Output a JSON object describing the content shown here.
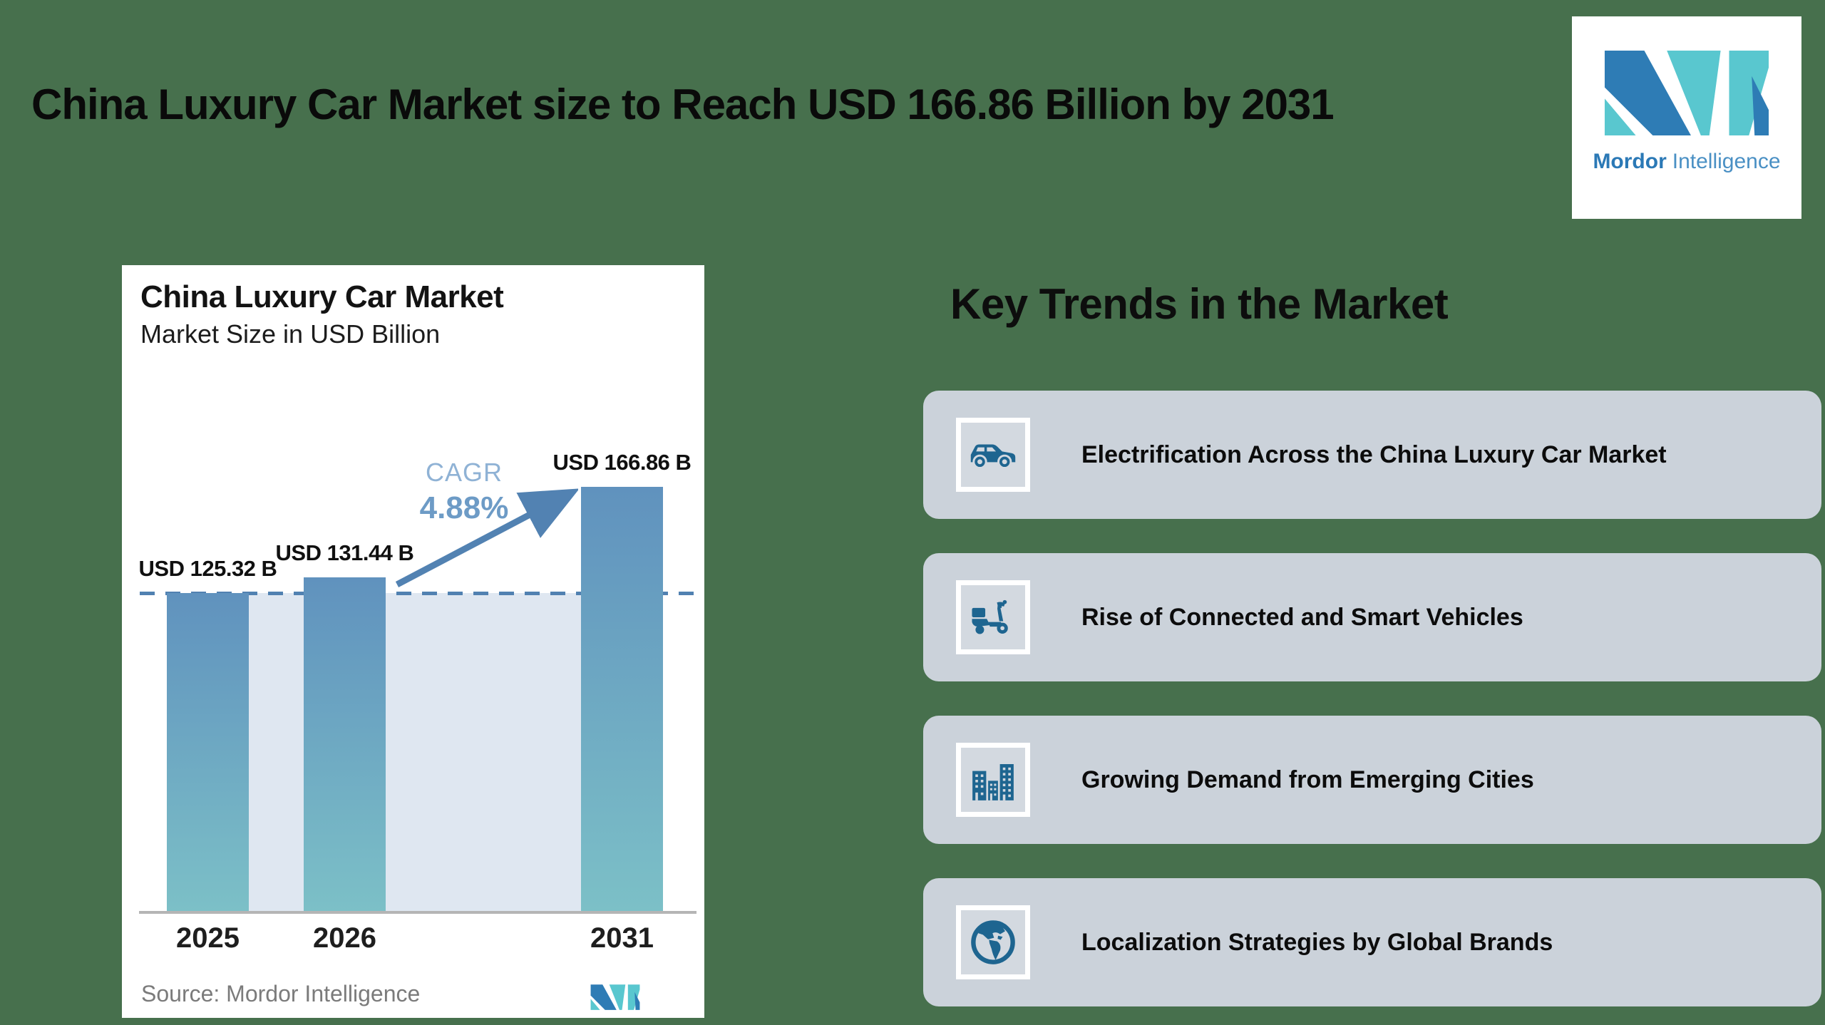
{
  "header": {
    "title": "China Luxury Car Market size to Reach USD 166.86 Billion by 2031"
  },
  "logo": {
    "brand_bold": "Mordor",
    "brand_light": "Intelligence",
    "mark_blue": "#2e7cb5",
    "mark_teal": "#59c7cf"
  },
  "chart_data": {
    "type": "bar",
    "title": "China Luxury Car Market",
    "subtitle": "Market Size in USD Billion",
    "categories": [
      "2025",
      "2026",
      "2031"
    ],
    "values": [
      125.32,
      131.44,
      166.86
    ],
    "bar_labels": [
      "USD 125.32 B",
      "USD 131.44 B",
      "USD 166.86 B"
    ],
    "cagr_label": "CAGR",
    "cagr_value": "4.88%",
    "baseline": 125.32,
    "ylim": [
      0,
      180
    ],
    "grid": "off",
    "source": "Source: Mordor Intelligence",
    "bar_color_top": "#6092be",
    "bar_color_bottom": "#7cc0c7",
    "baseline_fill_color": "#dfe7f1",
    "dash_color": "#5181b1",
    "arrow_color": "#5282b2"
  },
  "trends": {
    "heading": "Key Trends in the Market",
    "items": [
      {
        "icon": "car-icon",
        "label": "Electrification Across the China Luxury Car Market"
      },
      {
        "icon": "scooter-icon",
        "label": "Rise of Connected and Smart Vehicles"
      },
      {
        "icon": "city-buildings-icon",
        "label": "Growing Demand from Emerging Cities"
      },
      {
        "icon": "globe-icon",
        "label": "Localization Strategies by Global Brands"
      }
    ]
  },
  "colors": {
    "background_green": "#47704d",
    "card_white": "#ffffff",
    "trend_card_gray": "#cbd2da",
    "icon_blue": "#1e6590"
  }
}
